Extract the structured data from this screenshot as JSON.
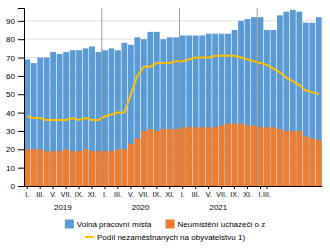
{
  "chart_data": {
    "type": "bar",
    "stacked": false,
    "grid": true,
    "legend": "bottom",
    "categories": [
      "I.",
      null,
      "III.",
      null,
      "V.",
      null,
      "VII.",
      null,
      "IX.",
      null,
      "XI.",
      null,
      "I.",
      null,
      "III.",
      null,
      "V.",
      null,
      "VII.",
      null,
      "IX.",
      null,
      "XI.",
      null,
      "I.",
      null,
      "III.",
      null,
      "V.",
      null,
      "VII.",
      null,
      "IX.",
      null,
      "XI.",
      null,
      "I.",
      "III.",
      null,
      null,
      null,
      null,
      null,
      null,
      null,
      null
    ],
    "series": [
      {
        "name": "Volná pracovní místa",
        "type": "bar",
        "color": "#5B9BD5",
        "values": [
          69,
          67,
          70,
          70,
          73,
          72,
          73,
          74,
          74,
          75,
          76,
          73,
          74,
          75,
          74,
          78,
          77,
          81,
          80,
          84,
          84,
          80,
          81,
          81,
          82,
          82,
          82,
          82,
          83,
          83,
          83,
          83,
          85,
          90,
          91,
          92,
          92,
          85,
          85,
          93,
          95,
          96,
          95,
          89,
          89,
          92
        ]
      },
      {
        "name": "Neumístění uchazeči o z",
        "type": "bar",
        "color": "#ED7D31",
        "values": [
          20,
          20,
          20,
          19,
          19,
          19,
          20,
          19,
          19,
          20,
          19,
          19,
          19,
          19,
          20,
          20,
          23,
          26,
          30,
          31,
          30,
          31,
          31,
          31,
          32,
          32,
          32,
          32,
          32,
          32,
          33,
          34,
          34,
          34,
          33,
          33,
          32,
          32,
          32,
          31,
          30,
          30,
          30,
          27,
          26,
          25
        ]
      },
      {
        "name": "Podíl nezaměstnaných na obyvatelstvu 1)",
        "type": "line",
        "color": "#FFC000",
        "values": [
          38,
          37,
          37,
          36,
          36,
          36,
          36,
          37,
          36,
          37,
          36,
          36,
          38,
          39,
          40,
          40,
          50,
          60,
          65,
          65,
          67,
          67,
          67,
          68,
          68,
          69,
          70,
          70,
          70,
          71,
          71,
          71,
          71,
          70,
          69,
          68,
          67,
          66,
          64,
          62,
          59,
          57,
          55,
          52,
          51,
          50
        ]
      }
    ],
    "ylim": [
      0,
      97
    ],
    "yticks": [
      0,
      10,
      20,
      30,
      40,
      50,
      60,
      70,
      80,
      90
    ],
    "annotations": [
      {
        "text": "2019",
        "start": 0,
        "end": 11
      },
      {
        "text": "2020",
        "start": 12,
        "end": 23
      },
      {
        "text": "2021",
        "start": 24,
        "end": 35
      }
    ]
  }
}
